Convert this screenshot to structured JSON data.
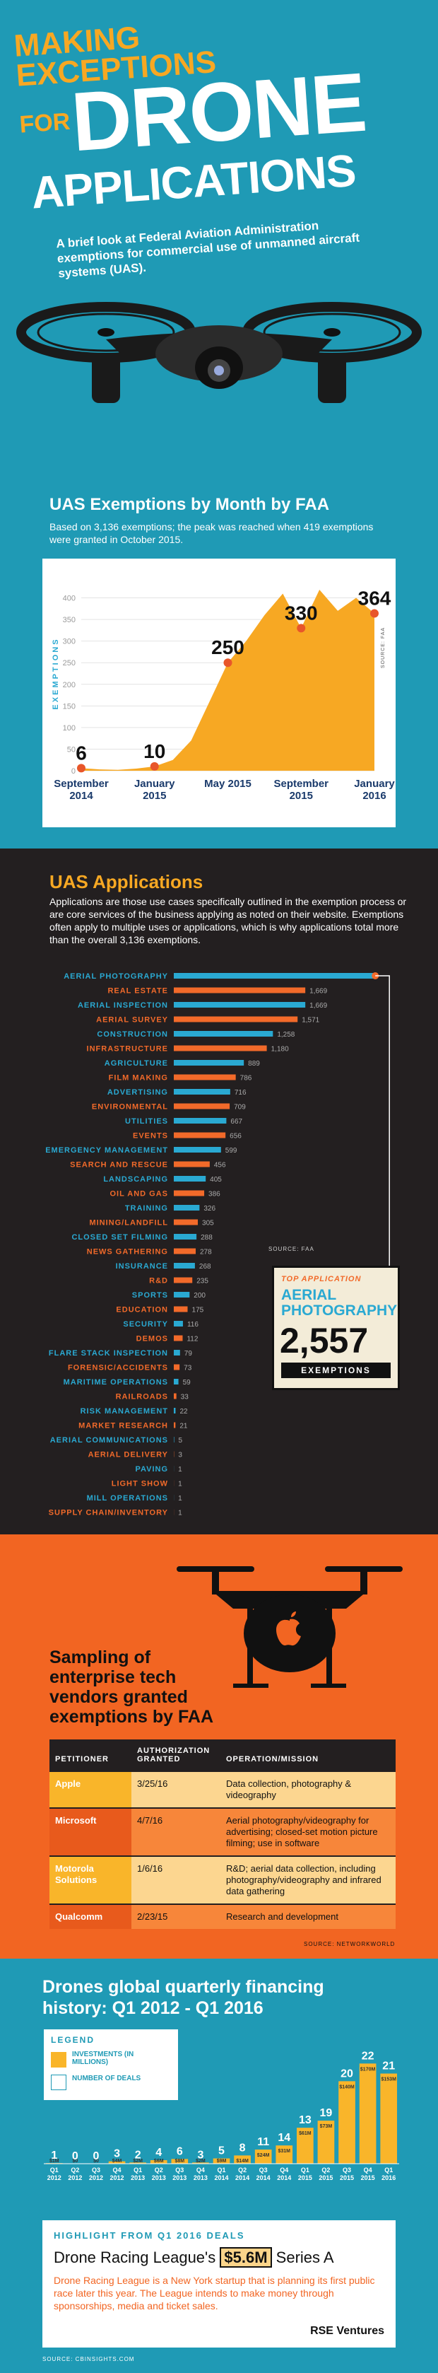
{
  "header": {
    "line1": "MAKING",
    "line2": "EXCEPTIONS",
    "line3": "FOR",
    "title1": "DRONE",
    "title2": "APPLICATIONS",
    "intro": "A brief look at Federal Aviation Administration exemptions for commercial use of unmanned aircraft systems (UAS)."
  },
  "chart_data": [
    {
      "type": "area",
      "title": "UAS Exemptions by Month by FAA",
      "subtitle": "Based on 3,136 exemptions; the peak was reached when 419 exemptions were granted in October 2015.",
      "y_label": "EXEMPTIONS",
      "source": "SOURCE: FAA",
      "categories": [
        "September 2014",
        null,
        null,
        null,
        "January 2015",
        null,
        null,
        null,
        "May 2015",
        null,
        null,
        null,
        "September 2015",
        null,
        null,
        null,
        "January 2016"
      ],
      "values": [
        6,
        3,
        2,
        5,
        10,
        25,
        70,
        160,
        250,
        300,
        360,
        410,
        330,
        419,
        370,
        400,
        364
      ],
      "color": "#f7a823",
      "point_color": "#e8562a",
      "ylim": [
        0,
        450
      ],
      "yticks": [
        0,
        50,
        100,
        150,
        200,
        250,
        300,
        350,
        400
      ],
      "grid": true
    },
    {
      "type": "hbar",
      "title": "UAS Applications",
      "subtitle": "Applications are those use cases specifically outlined in the exemption process or are core services of the business applying as noted on their website. Exemptions often apply to multiple uses or applications, which is why applications total more than the overall 3,136 exemptions.",
      "source": "SOURCE: FAA",
      "callout_kicker": "TOP APPLICATION",
      "callout_unit": "EXEMPTIONS",
      "categories": [
        "AERIAL PHOTOGRAPHY",
        "REAL ESTATE",
        "AERIAL INSPECTION",
        "AERIAL SURVEY",
        "CONSTRUCTION",
        "INFRASTRUCTURE",
        "AGRICULTURE",
        "FILM MAKING",
        "ADVERTISING",
        "ENVIRONMENTAL",
        "UTILITIES",
        "EVENTS",
        "EMERGENCY MANAGEMENT",
        "SEARCH AND RESCUE",
        "LANDSCAPING",
        "OIL AND GAS",
        "TRAINING",
        "MINING/LANDFILL",
        "CLOSED SET FILMING",
        "NEWS GATHERING",
        "INSURANCE",
        "R&D",
        "SPORTS",
        "EDUCATION",
        "SECURITY",
        "DEMOS",
        "FLARE STACK INSPECTION",
        "FORENSIC/ACCIDENTS",
        "MARITIME OPERATIONS",
        "RAILROADS",
        "RISK MANAGEMENT",
        "MARKET RESEARCH",
        "AERIAL COMMUNICATIONS",
        "AERIAL DELIVERY",
        "PAVING",
        "LIGHT SHOW",
        "MILL OPERATIONS",
        "SUPPLY CHAIN/INVENTORY"
      ],
      "values": [
        2557,
        1669,
        1669,
        1571,
        1258,
        1180,
        889,
        786,
        716,
        709,
        667,
        656,
        599,
        456,
        405,
        386,
        326,
        305,
        288,
        278,
        268,
        235,
        200,
        175,
        116,
        112,
        79,
        73,
        59,
        33,
        22,
        21,
        5,
        3,
        1,
        1,
        1,
        1
      ],
      "value_labels": [
        "2,557",
        "1,669",
        "1,669",
        "1,571",
        "1,258",
        "1,180",
        "889",
        "786",
        "716",
        "709",
        "667",
        "656",
        "599",
        "456",
        "405",
        "386",
        "326",
        "305",
        "288",
        "278",
        "268",
        "235",
        "200",
        "175",
        "116",
        "112",
        "79",
        "73",
        "59",
        "33",
        "22",
        "21",
        "5",
        "3",
        "1",
        "1",
        "1",
        "1"
      ],
      "colors": [
        "#2aa9d2",
        "#f26a2a"
      ],
      "xlim": [
        0,
        2600
      ]
    },
    {
      "type": "combo",
      "title": "Drones global quarterly financing history: Q1 2012 - Q1 2016",
      "legend_title": "LEGEND",
      "source": "SOURCE: CBINSIGHTS.COM",
      "categories": [
        "Q1 2012",
        "Q2 2012",
        "Q3 2012",
        "Q4 2012",
        "Q1 2013",
        "Q2 2013",
        "Q3 2013",
        "Q4 2013",
        "Q1 2014",
        "Q2 2014",
        "Q3 2014",
        "Q4 2014",
        "Q1 2015",
        "Q2 2015",
        "Q3 2015",
        "Q4 2015",
        "Q1 2016"
      ],
      "series": [
        {
          "name": "INVESTMENTS (IN MILLIONS)",
          "color": "#f9b52a",
          "values": [
            1,
            0,
            0,
            4,
            2,
            6,
            8,
            2,
            9,
            14,
            24,
            31,
            61,
            73,
            140,
            170,
            153
          ],
          "value_labels": [
            "$1M",
            "$0",
            "$0",
            "$4M",
            "$2M",
            "$6M",
            "$8M",
            "$2M",
            "$9M",
            "$14M",
            "$24M",
            "$31M",
            "$61M",
            "$73M",
            "$140M",
            "$170M",
            "$153M"
          ]
        },
        {
          "name": "NUMBER OF DEALS",
          "color": "#ffffff",
          "values": [
            1,
            0,
            0,
            3,
            2,
            4,
            6,
            3,
            5,
            8,
            11,
            14,
            13,
            19,
            20,
            22,
            21
          ]
        }
      ],
      "ylim": [
        0,
        180
      ]
    }
  ],
  "table": {
    "title": "Sampling of enterprise tech vendors granted exemptions by FAA",
    "columns": [
      "PETITIONER",
      "AUTHORIZATION GRANTED",
      "OPERATION/MISSION"
    ],
    "rows": [
      [
        "Apple",
        "3/25/16",
        "Data collection, photography & videography"
      ],
      [
        "Microsoft",
        "4/7/16",
        "Aerial photography/videography for advertising; closed-set motion picture filming; use in software"
      ],
      [
        "Motorola Solutions",
        "1/6/16",
        "R&D; aerial data collection, including photography/videography and infrared data gathering"
      ],
      [
        "Qualcomm",
        "2/23/15",
        "Research and development"
      ]
    ],
    "source": "SOURCE: NETWORKWORLD"
  },
  "highlight": {
    "kicker": "HIGHLIGHT FROM Q1 2016 DEALS",
    "headline_before": "Drone Racing League's",
    "amount": "$5.6M",
    "headline_after": "Series A",
    "text": "Drone Racing League is a New York startup that is planning its first public race later this year. The League intends to make money through sponsorships, media and ticket sales.",
    "investor": "RSE Ventures"
  }
}
